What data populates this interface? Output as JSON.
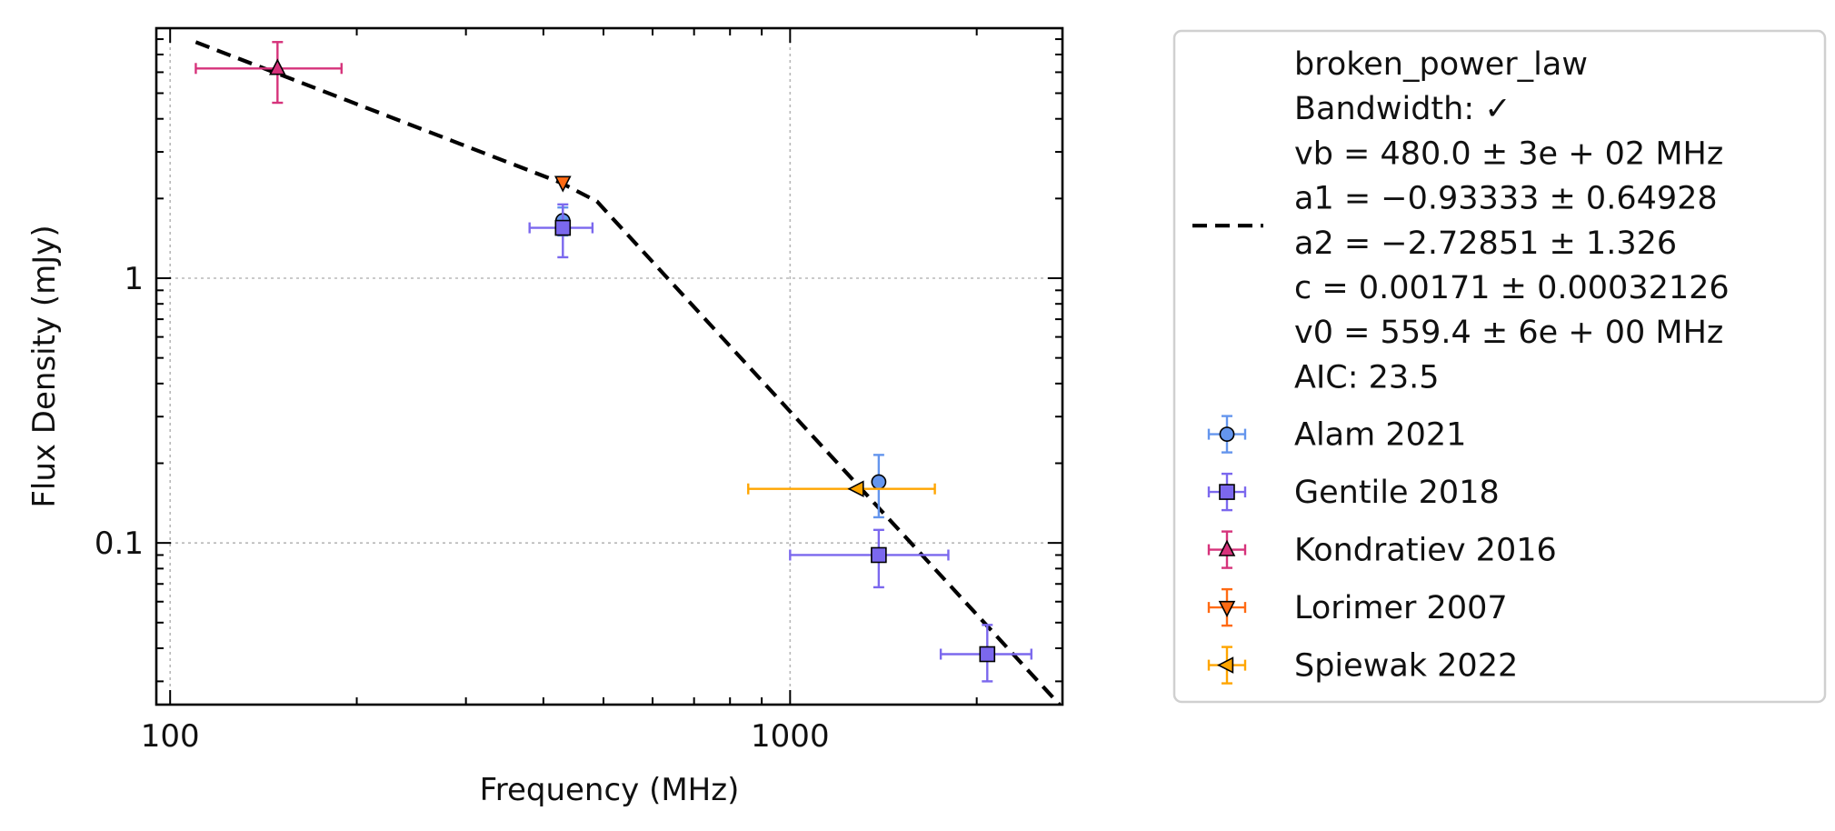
{
  "chart_data": {
    "type": "scatter",
    "title": "",
    "xlabel": "Frequency (MHz)",
    "ylabel": "Flux Density (mJy)",
    "xscale": "log",
    "yscale": "log",
    "xlim": [
      95,
      2750
    ],
    "ylim": [
      0.0245,
      8.8
    ],
    "x_ticks": [
      {
        "value": 100,
        "label": "100"
      },
      {
        "value": 1000,
        "label": "1000"
      }
    ],
    "y_ticks": [
      {
        "value": 0.1,
        "label": "0.1"
      },
      {
        "value": 1,
        "label": "1"
      }
    ],
    "grid": true,
    "legend_position": "outside-right",
    "fit": {
      "name": "broken_power_law",
      "color": "#000000",
      "style": "dashed",
      "x": [
        110,
        426,
        488,
        2720
      ],
      "y": [
        7.8,
        2.3,
        1.95,
        0.0245
      ],
      "legend_lines": [
        "broken_power_law",
        "Bandwidth: ✓",
        "vb = 480.0 ± 3e + 02 MHz",
        "a1 = −0.93333 ± 0.64928",
        "a2 = −2.72851 ± 1.326",
        "c = 0.00171 ± 0.00032126",
        "v0 = 559.4 ± 6e + 00 MHz",
        "AIC: 23.5"
      ]
    },
    "series": [
      {
        "name": "Alam 2021",
        "marker": "circle",
        "color": "#6495ed",
        "points": [
          {
            "x": 430,
            "y": 1.65,
            "xerr": [
              0,
              0
            ],
            "yerr": [
              0.2,
              0.2
            ]
          },
          {
            "x": 1390,
            "y": 0.17,
            "xerr": [
              0,
              0
            ],
            "yerr": [
              0.045,
              0.045
            ]
          }
        ]
      },
      {
        "name": "Gentile 2018",
        "marker": "square",
        "color": "#7b68ee",
        "points": [
          {
            "x": 430,
            "y": 1.55,
            "xerr": [
              50,
              50
            ],
            "yerr": [
              0.35,
              0.35
            ]
          },
          {
            "x": 1390,
            "y": 0.09,
            "xerr": [
              390,
              410
            ],
            "yerr": [
              0.022,
              0.022
            ]
          },
          {
            "x": 2080,
            "y": 0.038,
            "xerr": [
              330,
              370
            ],
            "yerr": [
              0.008,
              0.011
            ]
          }
        ]
      },
      {
        "name": "Kondratiev 2016",
        "marker": "triangle-up",
        "color": "#d6337b",
        "points": [
          {
            "x": 149,
            "y": 6.2,
            "xerr": [
              39,
              40
            ],
            "yerr": [
              1.6,
              1.6
            ]
          }
        ]
      },
      {
        "name": "Lorimer 2007",
        "marker": "triangle-down",
        "color": "#ff6a13",
        "points": [
          {
            "x": 430,
            "y": 2.3,
            "xerr": [
              0,
              0
            ],
            "yerr": [
              0,
              0
            ]
          }
        ]
      },
      {
        "name": "Spiewak 2022",
        "marker": "triangle-left",
        "color": "#ffa500",
        "points": [
          {
            "x": 1284,
            "y": 0.16,
            "xerr": [
              428,
              428
            ],
            "yerr": [
              0,
              0
            ]
          }
        ]
      }
    ]
  }
}
